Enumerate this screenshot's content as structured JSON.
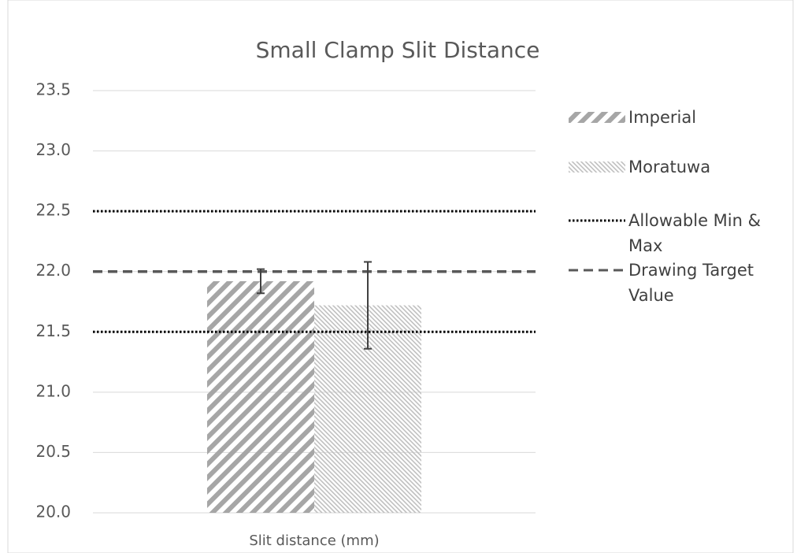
{
  "chart_data": {
    "type": "bar",
    "title": "Small Clamp Slit Distance",
    "categories": [
      "Slit distance (mm)"
    ],
    "series": [
      {
        "name": "Imperial",
        "color": "#a6a6a6",
        "pattern": "wide-diagonal",
        "values": [
          21.92
        ],
        "errors": [
          0.1
        ]
      },
      {
        "name": "Moratuwa",
        "color": "#bfbfbf",
        "pattern": "fine-diagonal",
        "values": [
          21.72
        ],
        "errors": [
          0.36
        ]
      }
    ],
    "reference_lines": [
      {
        "name": "Allowable Min & Max",
        "color": "#000000",
        "style": "dotted",
        "values": [
          21.5,
          22.5
        ]
      },
      {
        "name": "Drawing Target Value",
        "color": "#595959",
        "style": "dashed",
        "values": [
          22.0
        ]
      }
    ],
    "ylim": [
      20,
      23.5
    ],
    "yticks": [
      {
        "value": 20,
        "label": "20.0"
      },
      20.5,
      {
        "value": 21,
        "label": "21.0"
      },
      21.5,
      {
        "value": 22,
        "label": "22.0"
      },
      22.5,
      {
        "value": 23,
        "label": "23.0"
      },
      23.5
    ],
    "grid": true,
    "legend": "right"
  }
}
